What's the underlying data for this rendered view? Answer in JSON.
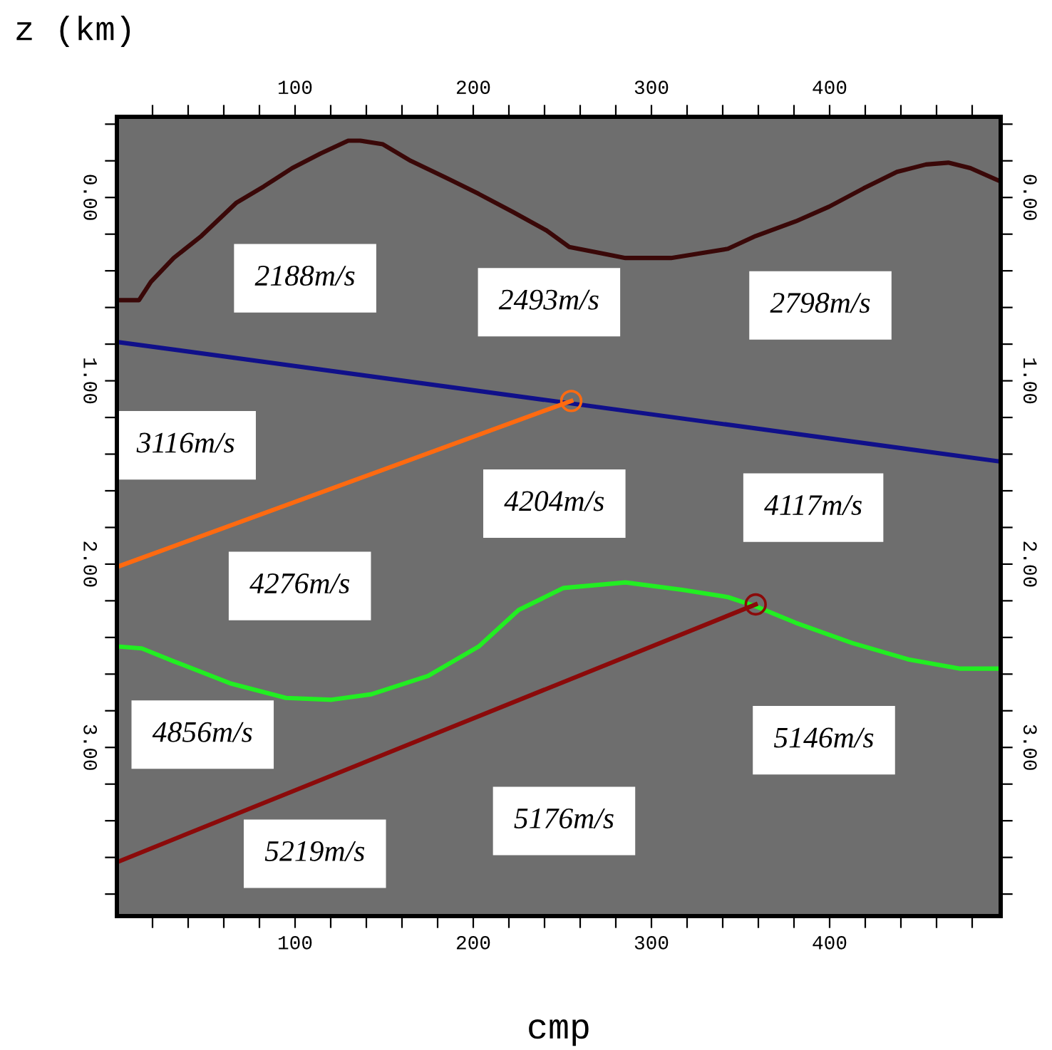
{
  "chart_data": {
    "type": "line",
    "xlabel": "cmp",
    "ylabel": "z (km)",
    "x2label": null,
    "xlim": [
      0,
      496
    ],
    "ylim": [
      3.92,
      -0.44
    ],
    "x2lim": [
      0,
      496
    ],
    "y2lim": [
      3.92,
      -0.44
    ],
    "xticks": [
      {
        "value": 20,
        "label": null
      },
      {
        "value": 40,
        "label": null
      },
      {
        "value": 60,
        "label": null
      },
      {
        "value": 80,
        "label": null
      },
      100,
      {
        "value": 120,
        "label": null
      },
      {
        "value": 140,
        "label": null
      },
      {
        "value": 160,
        "label": null
      },
      {
        "value": 180,
        "label": null
      },
      200,
      {
        "value": 220,
        "label": null
      },
      {
        "value": 240,
        "label": null
      },
      {
        "value": 260,
        "label": null
      },
      {
        "value": 280,
        "label": null
      },
      300,
      {
        "value": 320,
        "label": null
      },
      {
        "value": 340,
        "label": null
      },
      {
        "value": 360,
        "label": null
      },
      {
        "value": 380,
        "label": null
      },
      400,
      {
        "value": 420,
        "label": null
      },
      {
        "value": 440,
        "label": null
      },
      {
        "value": 460,
        "label": null
      },
      {
        "value": 480,
        "label": null
      }
    ],
    "x2ticks": [
      {
        "value": 20,
        "label": null
      },
      {
        "value": 40,
        "label": null
      },
      {
        "value": 60,
        "label": null
      },
      {
        "value": 80,
        "label": null
      },
      100,
      {
        "value": 120,
        "label": null
      },
      {
        "value": 140,
        "label": null
      },
      {
        "value": 160,
        "label": null
      },
      {
        "value": 180,
        "label": null
      },
      200,
      {
        "value": 220,
        "label": null
      },
      {
        "value": 240,
        "label": null
      },
      {
        "value": 260,
        "label": null
      },
      {
        "value": 280,
        "label": null
      },
      300,
      {
        "value": 320,
        "label": null
      },
      {
        "value": 340,
        "label": null
      },
      {
        "value": 360,
        "label": null
      },
      {
        "value": 380,
        "label": null
      },
      400,
      {
        "value": 420,
        "label": null
      },
      {
        "value": 440,
        "label": null
      },
      {
        "value": 460,
        "label": null
      },
      {
        "value": 480,
        "label": null
      }
    ],
    "yticks": [
      {
        "value": -0.4,
        "label": null
      },
      {
        "value": -0.2,
        "label": null
      },
      {
        "value": 0,
        "label": "0.00"
      },
      {
        "value": 0.2,
        "label": null
      },
      {
        "value": 0.4,
        "label": null
      },
      {
        "value": 0.6,
        "label": null
      },
      {
        "value": 0.8,
        "label": null
      },
      {
        "value": 1,
        "label": "1.00"
      },
      {
        "value": 1.2,
        "label": null
      },
      {
        "value": 1.4,
        "label": null
      },
      {
        "value": 1.6,
        "label": null
      },
      {
        "value": 1.8,
        "label": null
      },
      {
        "value": 2,
        "label": "2.00"
      },
      {
        "value": 2.2,
        "label": null
      },
      {
        "value": 2.4,
        "label": null
      },
      {
        "value": 2.6,
        "label": null
      },
      {
        "value": 2.8,
        "label": null
      },
      {
        "value": 3,
        "label": "3.00"
      },
      {
        "value": 3.2,
        "label": null
      },
      {
        "value": 3.4,
        "label": null
      },
      {
        "value": 3.6,
        "label": null
      },
      {
        "value": 3.8,
        "label": null
      }
    ],
    "y2ticks": [
      {
        "value": -0.4,
        "label": null
      },
      {
        "value": -0.2,
        "label": null
      },
      {
        "value": 0,
        "label": "0.00"
      },
      {
        "value": 0.2,
        "label": null
      },
      {
        "value": 0.4,
        "label": null
      },
      {
        "value": 0.6,
        "label": null
      },
      {
        "value": 0.8,
        "label": null
      },
      {
        "value": 1,
        "label": "1.00"
      },
      {
        "value": 1.2,
        "label": null
      },
      {
        "value": 1.4,
        "label": null
      },
      {
        "value": 1.6,
        "label": null
      },
      {
        "value": 1.8,
        "label": null
      },
      {
        "value": 2,
        "label": "2.00"
      },
      {
        "value": 2.2,
        "label": null
      },
      {
        "value": 2.4,
        "label": null
      },
      {
        "value": 2.6,
        "label": null
      },
      {
        "value": 2.8,
        "label": null
      },
      {
        "value": 3,
        "label": "3.00"
      },
      {
        "value": 3.2,
        "label": null
      },
      {
        "value": 3.4,
        "label": null
      },
      {
        "value": 3.6,
        "label": null
      },
      {
        "value": 3.8,
        "label": null
      }
    ],
    "grid": false,
    "legend": false,
    "series": [
      {
        "color": "#3a0808",
        "x": [
          1.6,
          12.4,
          19.1,
          31.9,
          47.4,
          66.9,
          82.4,
          98.4,
          114.3,
          129.8,
          136.5,
          149.3,
          164.9,
          184.3,
          203,
          222.4,
          241.1,
          253.9,
          269.8,
          285.4,
          311,
          330.1,
          342.9,
          358.5,
          381,
          399.7,
          419.1,
          437.8,
          454.1,
          466.6,
          479,
          495.3
        ],
        "values": [
          0.56,
          0.56,
          0.46,
          0.33,
          0.21,
          0.03,
          -0.06,
          -0.16,
          -0.24,
          -0.31,
          -0.31,
          -0.29,
          -0.2,
          -0.11,
          -0.02,
          0.08,
          0.18,
          0.27,
          0.3,
          0.33,
          0.33,
          0.3,
          0.28,
          0.21,
          0.13,
          0.05,
          -0.05,
          -0.14,
          -0.18,
          -0.19,
          -0.16,
          -0.09
        ]
      },
      {
        "color": "#10108a",
        "x": [
          1.6,
          495.3
        ],
        "values": [
          0.79,
          1.44
        ]
      },
      {
        "color": "#ff6a10",
        "x": [
          1.6,
          255
        ],
        "values": [
          2.01,
          1.11
        ]
      },
      {
        "type": "scatter",
        "marker": "circle",
        "color": "#ff6a10",
        "x": [
          255
        ],
        "values": [
          1.11
        ]
      },
      {
        "color": "#22ee22",
        "x": [
          1.6,
          14.0,
          31.9,
          63.5,
          94.9,
          120.5,
          142.8,
          174.6,
          203,
          225.5,
          250.7,
          285.4,
          317.3,
          342.9,
          358.5,
          381,
          412.6,
          444.3,
          472.8,
          495.3
        ],
        "values": [
          2.45,
          2.46,
          2.53,
          2.65,
          2.73,
          2.74,
          2.71,
          2.61,
          2.45,
          2.25,
          2.13,
          2.1,
          2.14,
          2.18,
          2.23,
          2.32,
          2.43,
          2.52,
          2.57,
          2.57
        ]
      },
      {
        "color": "#8b0a0a",
        "x": [
          1.6,
          358.5
        ],
        "values": [
          3.62,
          2.22
        ]
      },
      {
        "type": "scatter",
        "marker": "circle",
        "color": "#8b0a0a",
        "x": [
          358.5
        ],
        "values": [
          2.22
        ]
      }
    ],
    "annotations": [
      "2188m/s",
      "2493m/s",
      "2798m/s",
      "3116m/s",
      "4204m/s",
      "4117m/s",
      "4276m/s",
      "4856m/s",
      "5146m/s",
      "5176m/s",
      "5219m/s"
    ]
  }
}
